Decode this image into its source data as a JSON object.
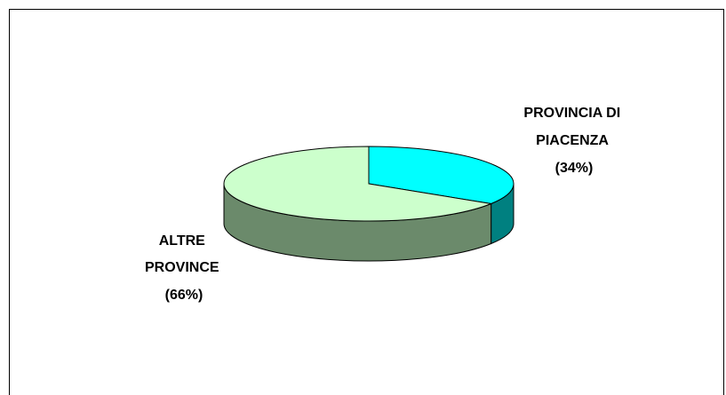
{
  "chart_data": {
    "type": "pie",
    "style": "3d",
    "title": "",
    "slices": [
      {
        "label": "PROVINCIA DI PIACENZA",
        "value": 34,
        "display": [
          "PROVINCIA DI",
          "PIACENZA",
          "(34%)"
        ],
        "top_color": "#00ffff",
        "side_color": "#008080"
      },
      {
        "label": "ALTRE PROVINCE",
        "value": 66,
        "display": [
          "ALTRE",
          "PROVINCE",
          "(66%)"
        ],
        "top_color": "#ccffcc",
        "side_color": "#6b8a6b"
      }
    ]
  }
}
